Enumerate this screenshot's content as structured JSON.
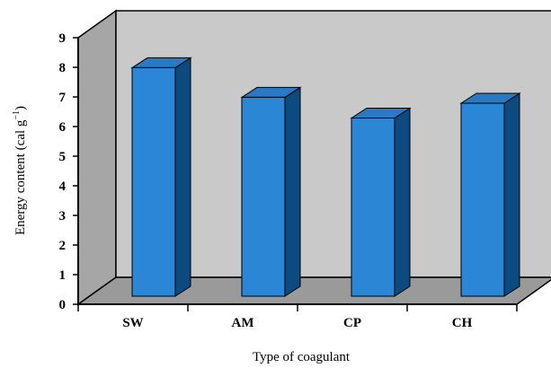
{
  "chart_data": {
    "type": "bar",
    "title": "",
    "xlabel": "Type of coagulant",
    "ylabel": "Energy content (cal g",
    "ylabel_superscript": "−1",
    "ylabel_close": ")",
    "categories": [
      "SW",
      "AM",
      "CP",
      "CH"
    ],
    "values": [
      8.2,
      7.2,
      6.5,
      7.0
    ],
    "ylim": [
      0,
      9
    ],
    "yticks": [
      "0",
      "1",
      "2",
      "3",
      "4",
      "5",
      "6",
      "7",
      "8",
      "9"
    ],
    "grid": false,
    "legend": "none",
    "style": "3d",
    "colors": {
      "bar_front": "#2b86d6",
      "bar_side": "#0d4a80",
      "bar_top": "#2a79c2",
      "back_wall": "#c9c9c9",
      "left_wall": "#a6a6a6",
      "floor": "#9a9a9a"
    }
  }
}
